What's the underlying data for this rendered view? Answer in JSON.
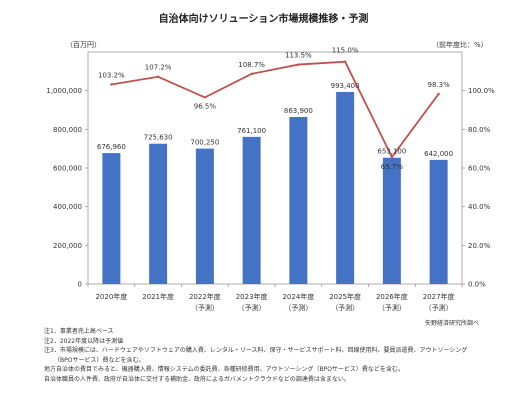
{
  "chart_data": {
    "type": "bar",
    "title": "自治体向けソリューション市場規模推移・予測",
    "y_unit_label": "（百万円）",
    "y2_unit_label": "（前年度比：%）",
    "categories": [
      {
        "year": "2020年度",
        "tag": ""
      },
      {
        "year": "2021年度",
        "tag": ""
      },
      {
        "year": "2022年度",
        "tag": "（予測）"
      },
      {
        "year": "2023年度",
        "tag": "（予測）"
      },
      {
        "year": "2024年度",
        "tag": "（予測）"
      },
      {
        "year": "2025年度",
        "tag": "（予測）"
      },
      {
        "year": "2026年度",
        "tag": "（予測）"
      },
      {
        "year": "2027年度",
        "tag": "（予測）"
      }
    ],
    "bar_values": [
      676960,
      725630,
      700250,
      761100,
      863900,
      993400,
      653100,
      642000
    ],
    "bar_labels": [
      "676,960",
      "725,630",
      "700,250",
      "761,100",
      "863,900",
      "993,400",
      "653,100",
      "642,000"
    ],
    "line_values": [
      103.2,
      107.2,
      96.5,
      108.7,
      113.5,
      115.0,
      65.7,
      98.3
    ],
    "line_labels": [
      "103.2%",
      "107.2%",
      "96.5%",
      "108.7%",
      "113.5%",
      "115.0%",
      "65.7%",
      "98.3%"
    ],
    "ylim": [
      0,
      1200000
    ],
    "y_ticks": [
      0,
      200000,
      400000,
      600000,
      800000,
      1000000
    ],
    "y_tick_labels": [
      "0",
      "200,000",
      "400,000",
      "600,000",
      "800,000",
      "1,000,000"
    ],
    "y2lim": [
      0,
      120
    ],
    "y2_ticks": [
      0,
      20,
      40,
      60,
      80,
      100
    ],
    "y2_tick_labels": [
      "0.0%",
      "20.0%",
      "40.0%",
      "60.0%",
      "80.0%",
      "100.0%"
    ],
    "colors": {
      "bar": "#4472c4",
      "line": "#c0504d",
      "axis": "#999999",
      "text": "#333333"
    }
  },
  "notes": [
    "注1．事業者売上高ベース",
    "注2．2022年度以降は予測値",
    "注3．市場規模には、ハードウェアやソフトウェアの購入費、レンタル・リース料、保守・サービスサポート料、回線使用料、要員派遣費、アウトソーシング",
    "（BPOサービス）費などを含む。",
    "地方自治体の費目でみると、機器購入費、情報システムの委託費、各種研修費用、アウトソーシング（BPOサービス）費などを含む。",
    "自治体職員の人件費、政府が自治体に交付する補助金、政府によるガバメントクラウドなどの調達費は含まない。"
  ],
  "source": "矢野経済研究所調べ"
}
